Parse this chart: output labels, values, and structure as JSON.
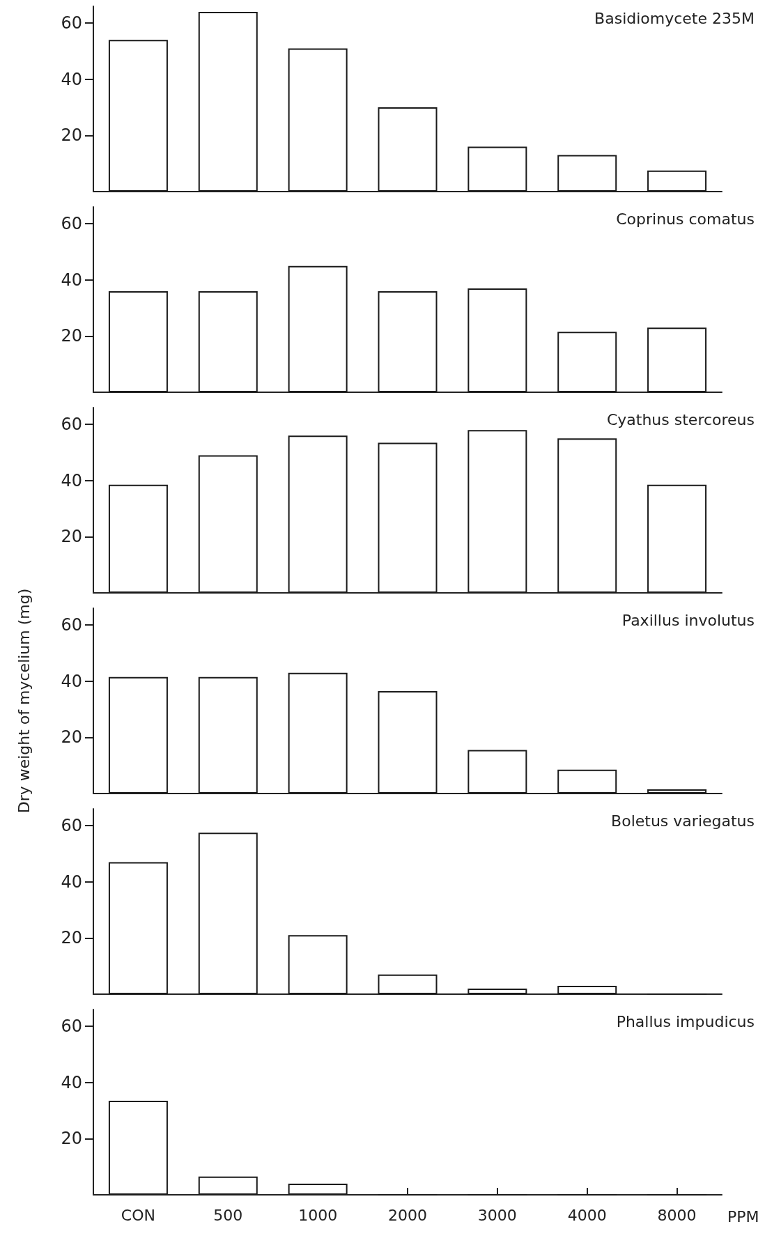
{
  "chart_data": [
    {
      "type": "bar",
      "title": "Basidiomycete 235M",
      "categories": [
        null,
        null,
        null,
        null,
        null,
        null,
        null
      ],
      "values": [
        54,
        64,
        51,
        30,
        16,
        13,
        7.5
      ],
      "color": "#1a1a1a",
      "ylim": [
        0,
        66
      ],
      "yticks": [
        20,
        40,
        60
      ],
      "tick_labels": "y"
    },
    {
      "type": "bar",
      "title": "Coprinus comatus",
      "categories": [
        null,
        null,
        null,
        null,
        null,
        null,
        null
      ],
      "values": [
        36,
        36,
        45,
        36,
        37,
        21.5,
        23
      ],
      "color": "#1a1a1a",
      "ylim": [
        0,
        66
      ],
      "yticks": [
        20,
        40,
        60
      ],
      "tick_labels": "y"
    },
    {
      "type": "bar",
      "title": "Cyathus stercoreus",
      "categories": [
        null,
        null,
        null,
        null,
        null,
        null,
        null
      ],
      "values": [
        38.5,
        49,
        56,
        53.5,
        58,
        55,
        38.5
      ],
      "color": "#1a1a1a",
      "ylim": [
        0,
        66
      ],
      "yticks": [
        20,
        40,
        60
      ],
      "tick_labels": "y"
    },
    {
      "type": "bar",
      "title": "Paxillus involutus",
      "ylabel": "Dry weight of mycelium (mg)",
      "categories": [
        null,
        null,
        null,
        null,
        null,
        null,
        null
      ],
      "values": [
        41.5,
        41.5,
        43,
        36.5,
        15.5,
        8.5,
        1.5
      ],
      "color": "#1a1a1a",
      "ylim": [
        0,
        66
      ],
      "yticks": [
        20,
        40,
        60
      ],
      "tick_labels": "y"
    },
    {
      "type": "bar",
      "title": "Boletus variegatus",
      "categories": [
        null,
        null,
        null,
        null,
        null,
        null,
        null
      ],
      "values": [
        47,
        57.5,
        21,
        7,
        2,
        3,
        0
      ],
      "color": "#1a1a1a",
      "ylim": [
        0,
        66
      ],
      "yticks": [
        20,
        40,
        60
      ],
      "tick_labels": "y"
    },
    {
      "type": "bar",
      "title": "Phallus impudicus",
      "xlabel": "PPM",
      "categories": [
        "CON",
        "500",
        "1000",
        "2000",
        "3000",
        "4000",
        "8000"
      ],
      "values": [
        33.5,
        6.5,
        4,
        0,
        0,
        0,
        0
      ],
      "color": "#1a1a1a",
      "ylim": [
        0,
        66
      ],
      "yticks": [
        20,
        40,
        60
      ]
    }
  ]
}
